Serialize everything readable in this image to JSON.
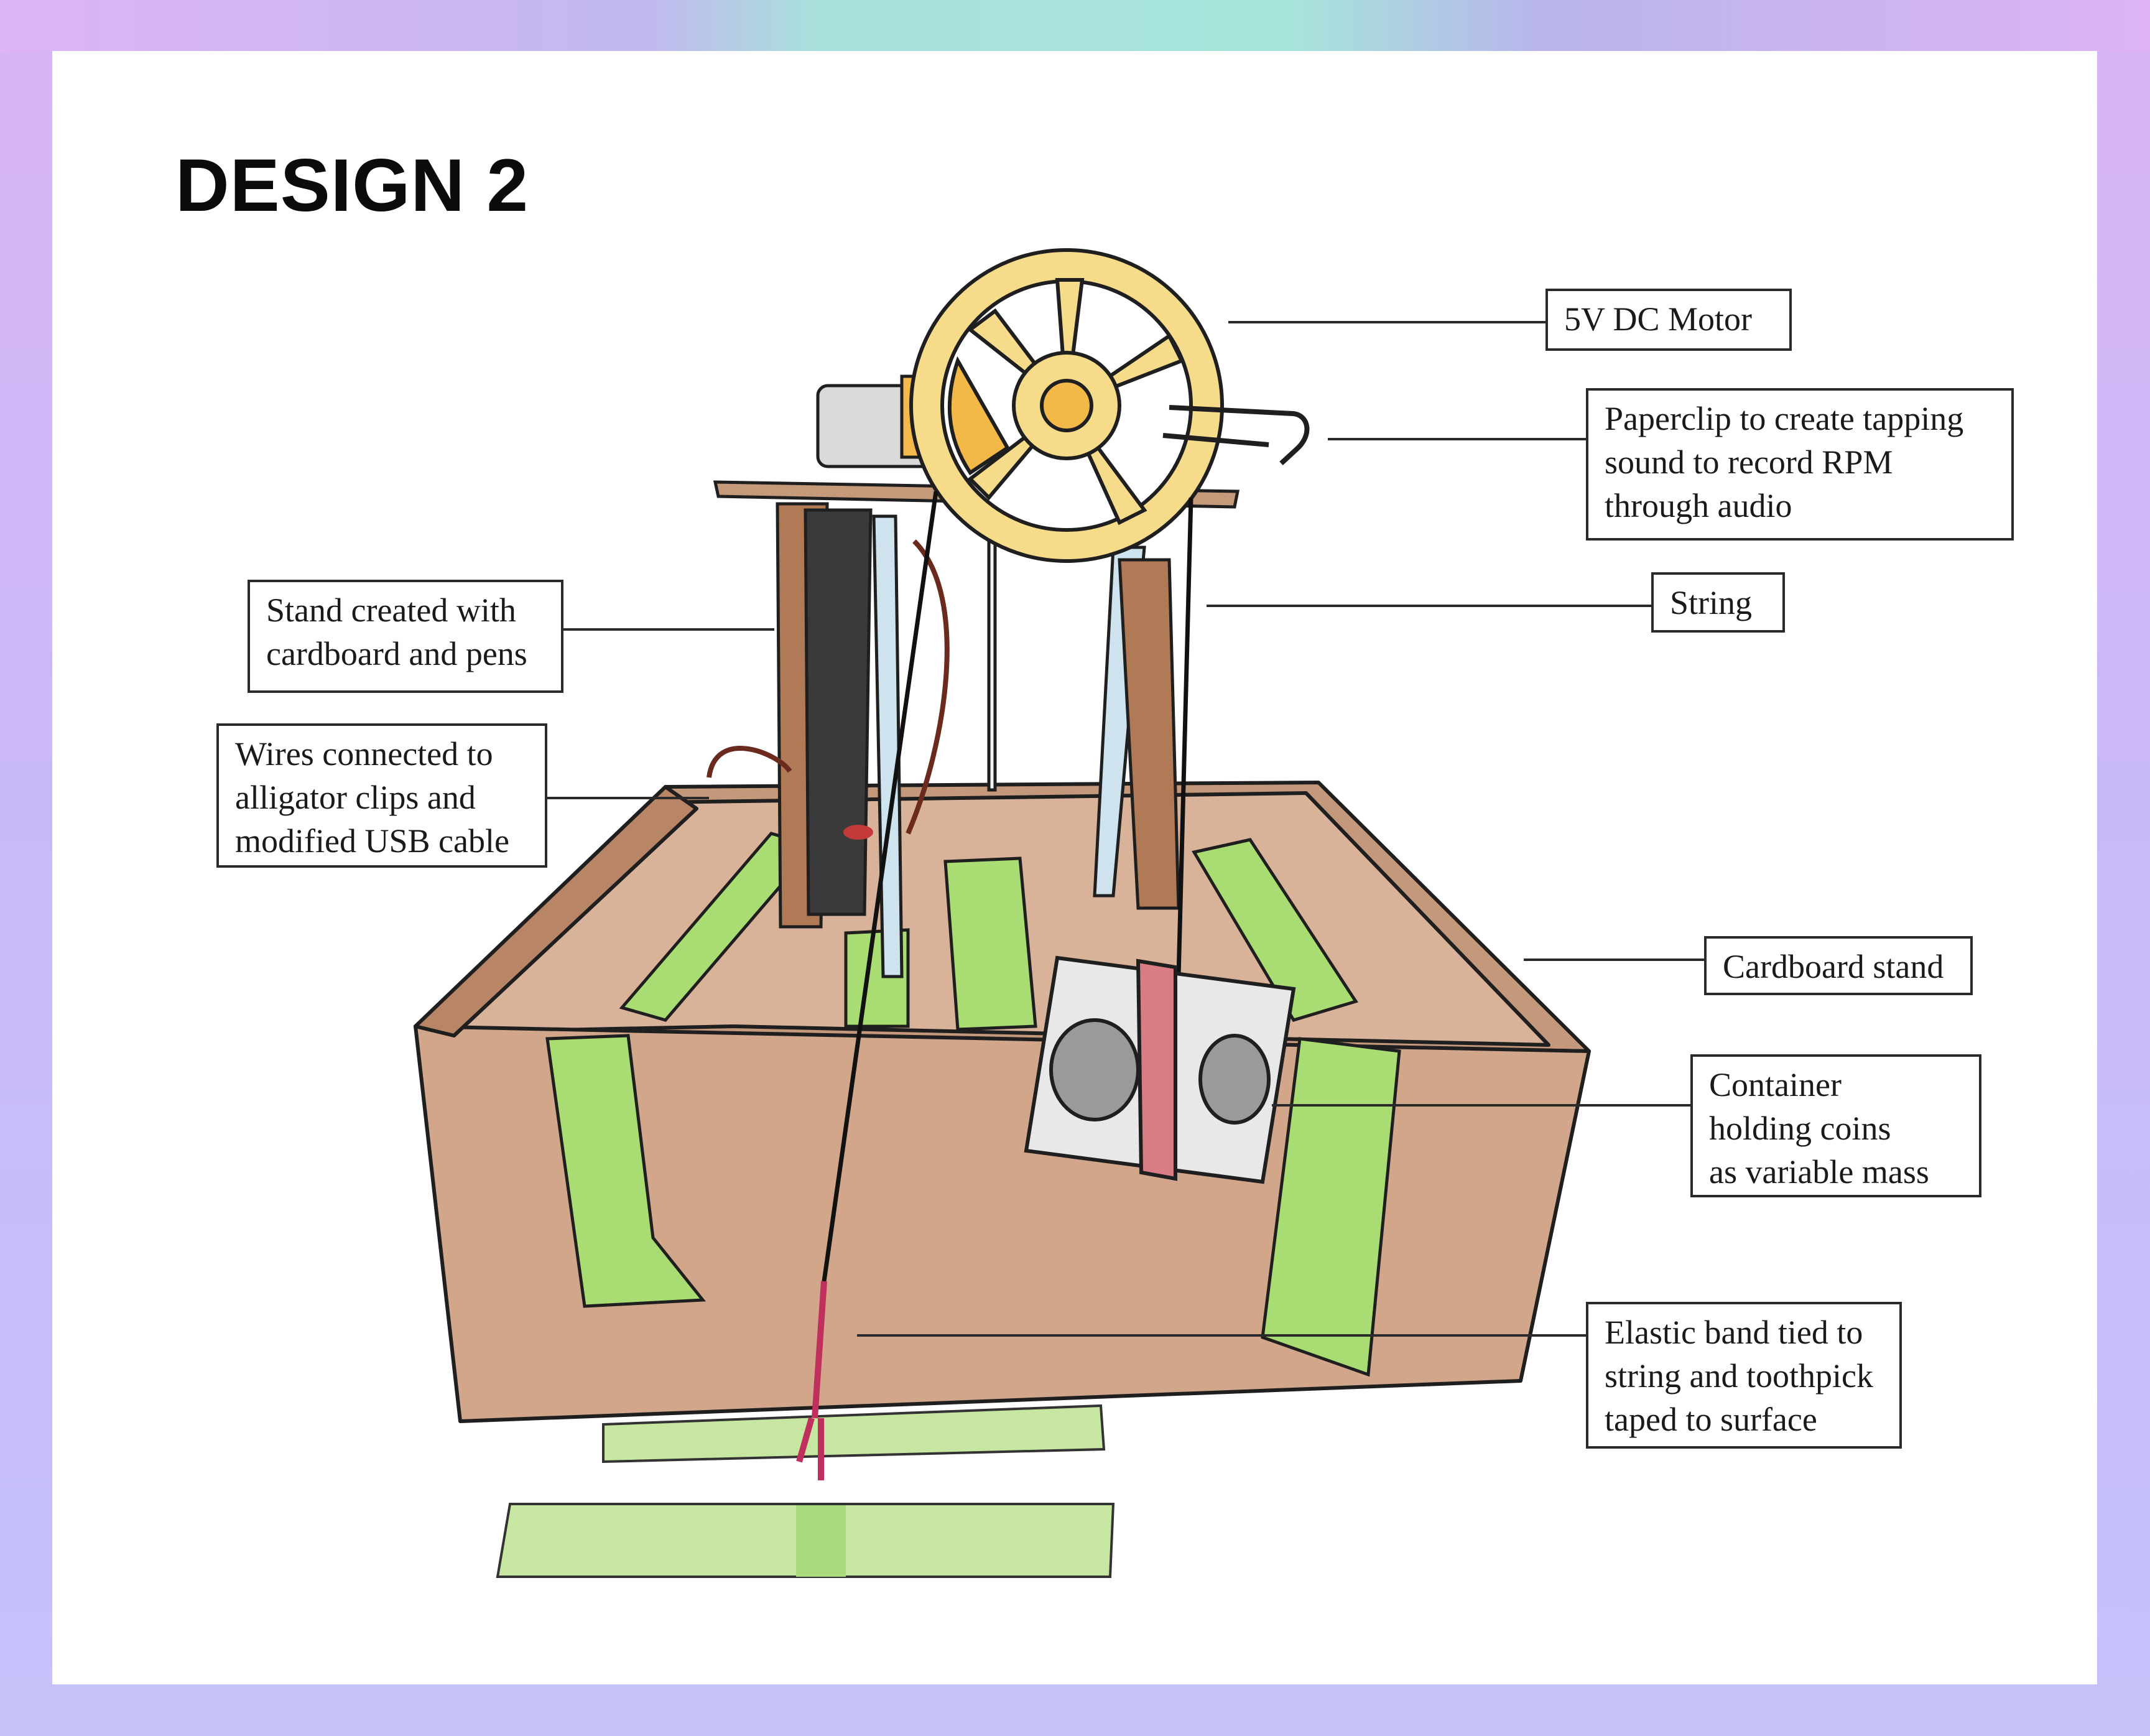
{
  "title": "DESIGN 2",
  "callouts": {
    "motor": "5V DC Motor",
    "paperclip": "Paperclip to create tapping\nsound to record RPM\nthrough audio",
    "string": "String",
    "stand": "Stand created with\ncardboard and pens",
    "wires": "Wires connected to\nalligator clips and\nmodified USB cable",
    "cardboard_stand": "Cardboard stand",
    "container": "Container\nholding coins\nas variable mass",
    "elastic": "Elastic band tied to\nstring and toothpick\ntaped to surface"
  },
  "colors": {
    "cardboard": "#d4a586",
    "cardboard_dark": "#b98462",
    "tape": "#a9dc72",
    "wheel": "#f6dc8a",
    "wheel_hub": "#f2b949",
    "elastic": "#d8406e"
  }
}
